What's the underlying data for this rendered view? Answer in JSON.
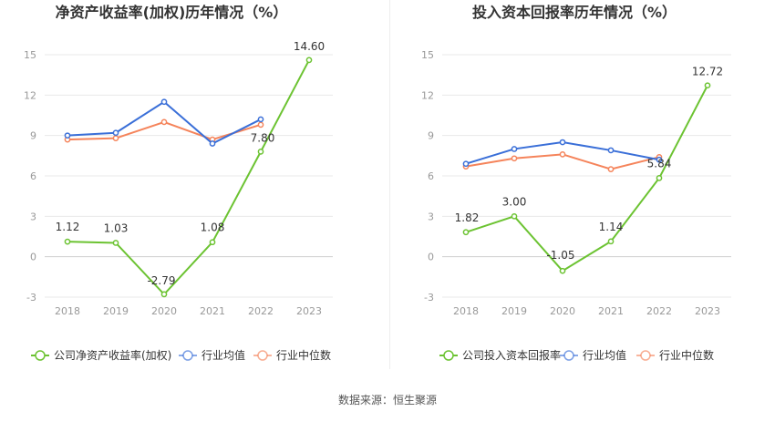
{
  "source_label": "数据来源：恒生聚源",
  "colors": {
    "company": "#6cc332",
    "avg": "#3a6fd8",
    "median": "#f5845b",
    "grid": "#e8e8e8",
    "axis": "#999999"
  },
  "chart_data": [
    {
      "type": "line",
      "title": "净资产收益率(加权)历年情况（%）",
      "x": [
        "2018",
        "2019",
        "2020",
        "2021",
        "2022",
        "2023"
      ],
      "yticks": [
        "15",
        "12",
        "9",
        "6",
        "3",
        "0",
        "-3"
      ],
      "ylim": [
        -3,
        15
      ],
      "grid": true,
      "legend": "bottom-left",
      "series": [
        {
          "name": "公司净资产收益率(加权)",
          "values": [
            1.12,
            1.03,
            -2.79,
            1.08,
            7.8,
            14.6
          ],
          "labels": [
            "1.12",
            "1.03",
            "-2.79",
            "1.08",
            "7.80",
            "14.60"
          ]
        },
        {
          "name": "行业均值",
          "values": [
            9.0,
            9.2,
            11.5,
            8.4,
            10.2,
            null
          ]
        },
        {
          "name": "行业中位数",
          "values": [
            8.7,
            8.8,
            10.0,
            8.7,
            9.8,
            null
          ]
        }
      ]
    },
    {
      "type": "line",
      "title": "投入资本回报率历年情况（%）",
      "x": [
        "2018",
        "2019",
        "2020",
        "2021",
        "2022",
        "2023"
      ],
      "yticks": [
        "15",
        "12",
        "9",
        "6",
        "3",
        "0",
        "-3"
      ],
      "ylim": [
        -3,
        15
      ],
      "grid": true,
      "legend": "bottom-left",
      "series": [
        {
          "name": "公司投入资本回报率",
          "values": [
            1.82,
            3.0,
            -1.05,
            1.14,
            5.84,
            12.72
          ],
          "labels": [
            "1.82",
            "3.00",
            "-1.05",
            "1.14",
            "5.84",
            "12.72"
          ]
        },
        {
          "name": "行业均值",
          "values": [
            6.9,
            8.0,
            8.5,
            7.9,
            7.2,
            null
          ]
        },
        {
          "name": "行业中位数",
          "values": [
            6.7,
            7.3,
            7.6,
            6.5,
            7.4,
            null
          ]
        }
      ]
    }
  ]
}
